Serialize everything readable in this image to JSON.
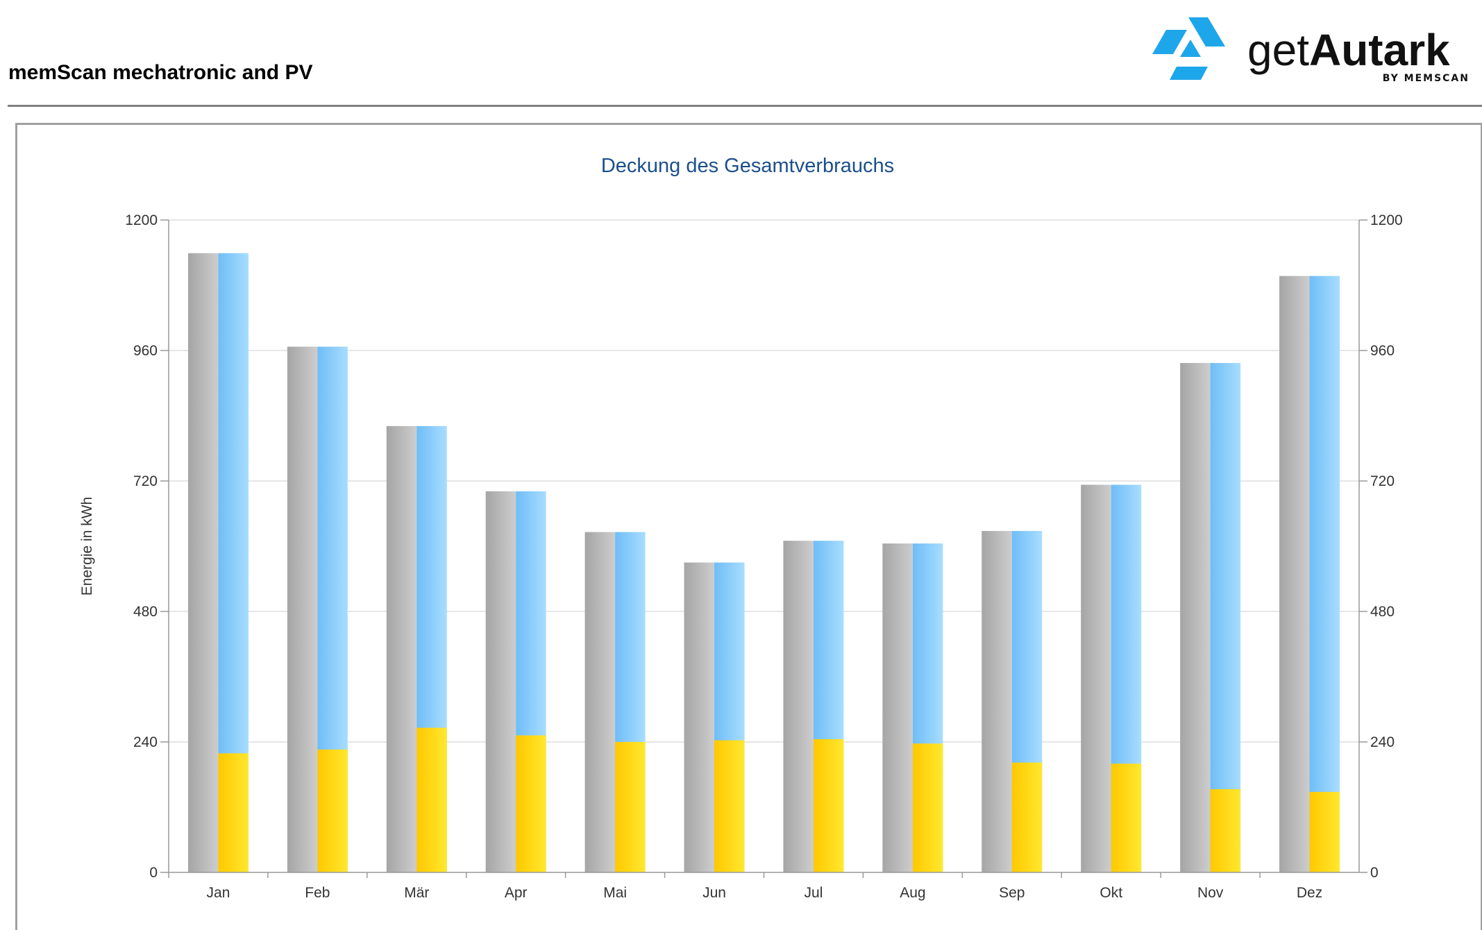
{
  "header": {
    "title": "memScan mechatronic and PV",
    "logo": {
      "text_main_light": "get",
      "text_main_bold": "Autark",
      "text_sub": "BY MEMSCAN",
      "color": "#1ea6ea"
    }
  },
  "chart_data": {
    "type": "bar",
    "title": "Deckung des Gesamtverbrauchs",
    "ylabel": "Energie in kWh",
    "xlabel": "",
    "ylim": [
      0,
      1200
    ],
    "yticks": [
      "0",
      "240",
      "480",
      "720",
      "960",
      "1200"
    ],
    "secondary_yaxis": true,
    "grid": true,
    "legend": "none",
    "categories": [
      "Jan",
      "Feb",
      "Mär",
      "Apr",
      "Mai",
      "Jun",
      "Jul",
      "Aug",
      "Sep",
      "Okt",
      "Nov",
      "Dez"
    ],
    "series": [
      {
        "values": [
          1139,
          967,
          821,
          701,
          626,
          570,
          610,
          605,
          628,
          713,
          937,
          1097
        ],
        "color": "#b4b4b4"
      },
      {
        "values": [
          1139,
          967,
          821,
          701,
          626,
          570,
          610,
          605,
          628,
          713,
          937,
          1097
        ],
        "color": "#8fcfff",
        "stacked_components": [
          {
            "values": [
              219,
              226,
              266,
              252,
              240,
              243,
              245,
              237,
              202,
              200,
              153,
              148
            ],
            "color": "#ffd81a"
          }
        ]
      }
    ]
  }
}
